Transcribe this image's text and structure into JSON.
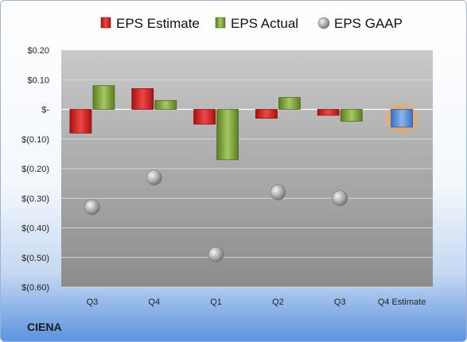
{
  "company": "CIENA",
  "chart_data": {
    "type": "bar",
    "categories": [
      "Q3",
      "Q4",
      "Q1",
      "Q2",
      "Q3",
      "Q4 Estimate"
    ],
    "series": [
      {
        "name": "EPS Estimate",
        "kind": "bar",
        "color": "#d42a2a",
        "values": [
          -0.08,
          0.07,
          -0.05,
          -0.03,
          -0.02,
          null
        ]
      },
      {
        "name": "EPS Actual",
        "kind": "bar",
        "color": "#7da13c",
        "values": [
          0.08,
          0.03,
          -0.17,
          0.04,
          -0.04,
          null
        ]
      },
      {
        "name": "EPS GAAP",
        "kind": "marker",
        "color": "#a6a6a6",
        "values": [
          -0.33,
          -0.23,
          -0.49,
          -0.28,
          -0.3,
          null
        ]
      }
    ],
    "forecast": {
      "category": "Q4 Estimate",
      "value": -0.06,
      "color": "#5b8fd8",
      "glow": "#f2a65a"
    },
    "y_ticks": [
      {
        "v": 0.2,
        "label": "$0.20"
      },
      {
        "v": 0.1,
        "label": "$0.10"
      },
      {
        "v": 0.0,
        "label": "$-"
      },
      {
        "v": -0.1,
        "label": "$(0.10)"
      },
      {
        "v": -0.2,
        "label": "$(0.20)"
      },
      {
        "v": -0.3,
        "label": "$(0.30)"
      },
      {
        "v": -0.4,
        "label": "$(0.40)"
      },
      {
        "v": -0.5,
        "label": "$(0.50)"
      },
      {
        "v": -0.6,
        "label": "$(0.60)"
      }
    ],
    "ylim": [
      -0.6,
      0.2
    ],
    "legend_position": "top",
    "grid": true
  }
}
